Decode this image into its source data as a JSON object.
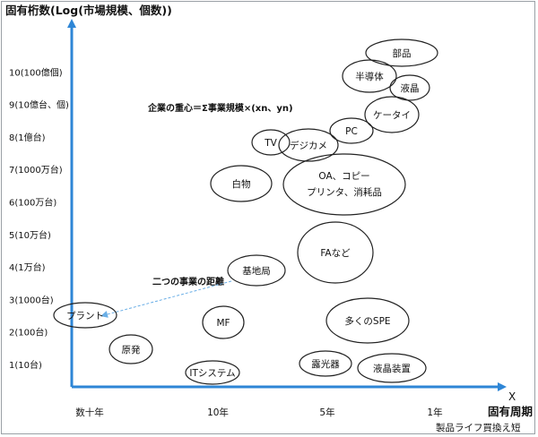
{
  "chart_data": {
    "type": "scatter",
    "title": "固有桁数(Log(市場規模、個数))",
    "ylabel": "固有桁数(Log(市場規模、個数))",
    "x_axis_letter": "X",
    "xlabel": "固有周期",
    "xlabel_sub": "製品ライフ買換え短",
    "formula": "企業の重心＝Σ事業規模×(xn、yn)",
    "annotation": "二つの事業の距離",
    "y_ticks": [
      {
        "label": "1(10台)",
        "value": 1
      },
      {
        "label": "2(100台)",
        "value": 2
      },
      {
        "label": "3(1000台)",
        "value": 3
      },
      {
        "label": "4(1万台)",
        "value": 4
      },
      {
        "label": "5(10万台)",
        "value": 5
      },
      {
        "label": "6(100万台)",
        "value": 6
      },
      {
        "label": "7(1000万台)",
        "value": 7
      },
      {
        "label": "8(1億台)",
        "value": 8
      },
      {
        "label": "9(10億台、個)",
        "value": 9
      },
      {
        "label": "10(100億個)",
        "value": 10
      }
    ],
    "x_ticks": [
      {
        "label": "数十年",
        "value": 0
      },
      {
        "label": "10年",
        "value": 1
      },
      {
        "label": "5年",
        "value": 2
      },
      {
        "label": "1年",
        "value": 3
      }
    ],
    "points": [
      {
        "label": "部品",
        "x": 3.0,
        "y": 10.4,
        "size": "large"
      },
      {
        "label": "半導体",
        "x": 2.45,
        "y": 10.0,
        "size": "medium"
      },
      {
        "label": "液晶",
        "x": 2.7,
        "y": 9.6,
        "size": "small"
      },
      {
        "label": "ケータイ",
        "x": 2.6,
        "y": 8.9,
        "size": "medium"
      },
      {
        "label": "PC",
        "x": 2.2,
        "y": 8.5,
        "size": "small"
      },
      {
        "label": "デジカメ",
        "x": 2.0,
        "y": 8.1,
        "size": "medium"
      },
      {
        "label": "TV",
        "x": 1.7,
        "y": 8.2,
        "size": "small"
      },
      {
        "label": "OA、コピー",
        "x": 2.2,
        "y": 7.0,
        "size": "large"
      },
      {
        "label": "プリンタ、消耗品",
        "x": 2.2,
        "y": 6.6,
        "size": "large"
      },
      {
        "label": "白物",
        "x": 1.25,
        "y": 6.8,
        "size": "medium"
      },
      {
        "label": "FAなど",
        "x": 2.1,
        "y": 4.7,
        "size": "large"
      },
      {
        "label": "基地局",
        "x": 1.5,
        "y": 3.8,
        "size": "medium"
      },
      {
        "label": "多くのSPE",
        "x": 2.25,
        "y": 2.2,
        "size": "large"
      },
      {
        "label": "MF",
        "x": 1.1,
        "y": 2.1,
        "size": "small"
      },
      {
        "label": "プラント",
        "x": 0.1,
        "y": 2.5,
        "size": "small"
      },
      {
        "label": "原発",
        "x": 0.5,
        "y": 1.4,
        "size": "small"
      },
      {
        "label": "露光器",
        "x": 1.95,
        "y": 1.0,
        "size": "small"
      },
      {
        "label": "液晶装置",
        "x": 2.5,
        "y": 0.9,
        "size": "medium"
      },
      {
        "label": "ITシステム",
        "x": 1.15,
        "y": 0.6,
        "size": "small"
      }
    ],
    "colors": {
      "axis": "#2e86d6",
      "arrow": "#6aaee6",
      "ellipse": "#222222"
    }
  }
}
